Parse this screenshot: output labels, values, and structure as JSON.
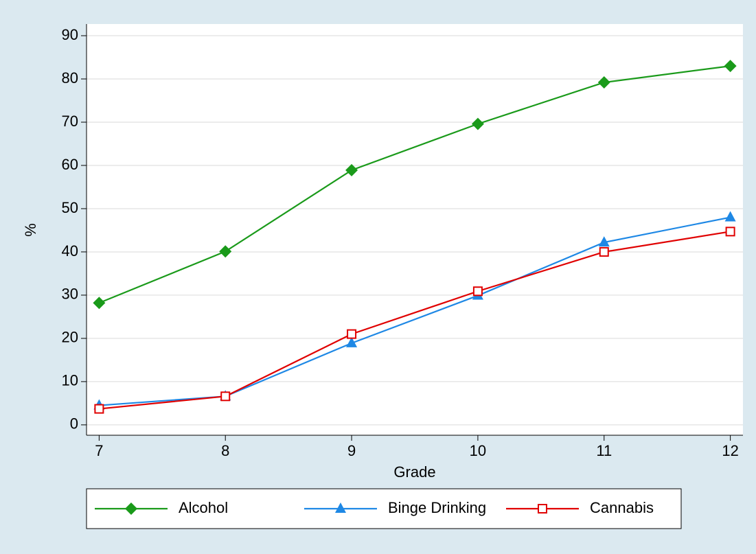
{
  "chart_data": {
    "type": "line",
    "x_label": "Grade",
    "y_label": "%",
    "x": [
      7,
      8,
      9,
      10,
      11,
      12
    ],
    "series": [
      {
        "name": "Alcohol",
        "color": "#1a9a1a",
        "marker": "diamond",
        "values": [
          28.2,
          40.1,
          58.9,
          69.6,
          79.2,
          83.0
        ]
      },
      {
        "name": "Binge Drinking",
        "color": "#1e88e5",
        "marker": "triangle",
        "values": [
          4.5,
          6.6,
          18.9,
          29.9,
          42.2,
          48.0
        ]
      },
      {
        "name": "Cannabis",
        "color": "#e00000",
        "marker": "square-hollow",
        "values": [
          3.7,
          6.6,
          21.0,
          30.9,
          40.0,
          44.7
        ]
      }
    ],
    "xlim": [
      6.9,
      12.1
    ],
    "xticks": [
      7,
      8,
      9,
      10,
      11,
      12
    ],
    "ylim": [
      -2.4,
      92.7
    ],
    "yticks": [
      0,
      10,
      20,
      30,
      40,
      50,
      60,
      70,
      80,
      90
    ],
    "grid": true,
    "legend": "bottom"
  }
}
